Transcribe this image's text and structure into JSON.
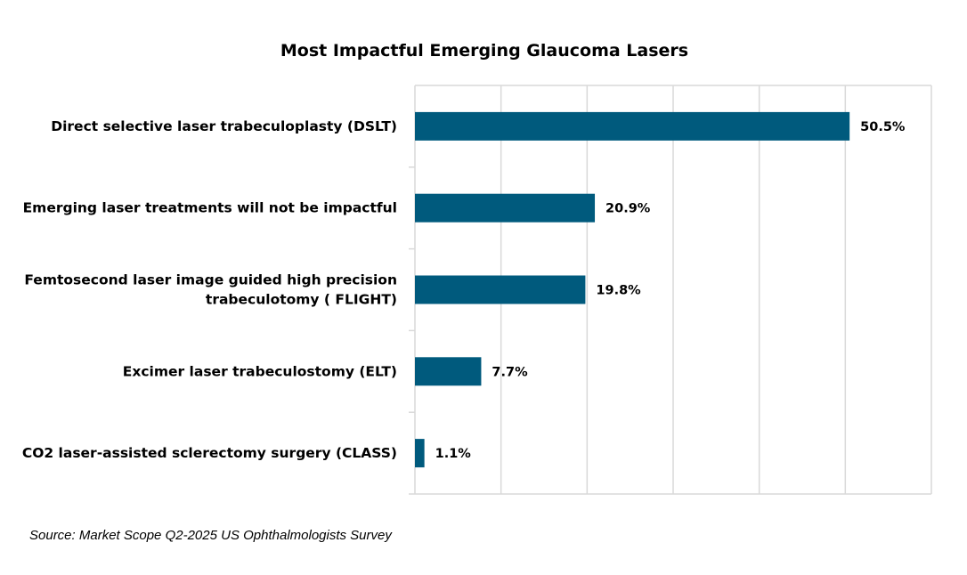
{
  "chart_data": {
    "type": "bar",
    "orientation": "horizontal",
    "title": "Most Impactful Emerging Glaucoma Lasers",
    "categories": [
      [
        "Direct selective laser trabeculoplasty (DSLT)"
      ],
      [
        "Emerging laser treatments will not be impactful"
      ],
      [
        "Femtosecond laser image guided high precision",
        "trabeculotomy ( FLIGHT)"
      ],
      [
        "Excimer laser trabeculostomy (ELT)"
      ],
      [
        "CO2 laser-assisted sclerectomy surgery (CLASS)"
      ]
    ],
    "values": [
      50.5,
      20.9,
      19.8,
      7.7,
      1.1
    ],
    "data_labels": [
      "50.5%",
      "20.9%",
      "19.8%",
      "7.7%",
      "1.1%"
    ],
    "xlim": [
      0,
      60
    ],
    "x_gridlines": [
      0,
      10,
      20,
      30,
      40,
      50,
      60
    ],
    "x_tick_labels_shown": false,
    "grid": true,
    "bar_color": "#005A7D",
    "grid_color": "#D9D9D9",
    "xlabel": "",
    "ylabel": ""
  },
  "source": "Source: Market Scope Q2-2025 US Ophthalmologists Survey"
}
